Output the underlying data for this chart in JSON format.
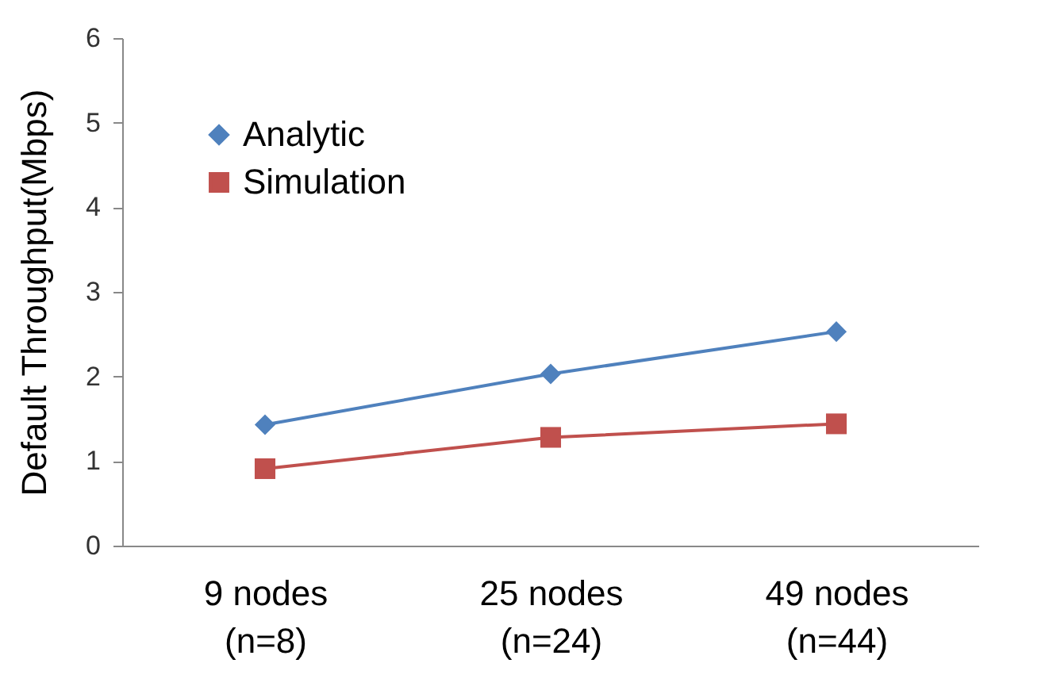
{
  "chart_data": {
    "type": "line",
    "ylabel": "Default   Throughput(Mbps)",
    "categories": [
      "9 nodes\n(n=8)",
      "25 nodes\n(n=24)",
      "49 nodes\n(n=44)"
    ],
    "series": [
      {
        "name": "Analytic",
        "color": "#4f81bd",
        "marker": "diamond",
        "values": [
          1.43,
          2.03,
          2.53
        ]
      },
      {
        "name": "Simulation",
        "color": "#c0504d",
        "marker": "square",
        "values": [
          0.91,
          1.28,
          1.44
        ]
      }
    ],
    "ylim": [
      0,
      6
    ],
    "yticks": [
      0,
      1,
      2,
      3,
      4,
      5,
      6
    ],
    "grid": false,
    "legend": "top left"
  }
}
